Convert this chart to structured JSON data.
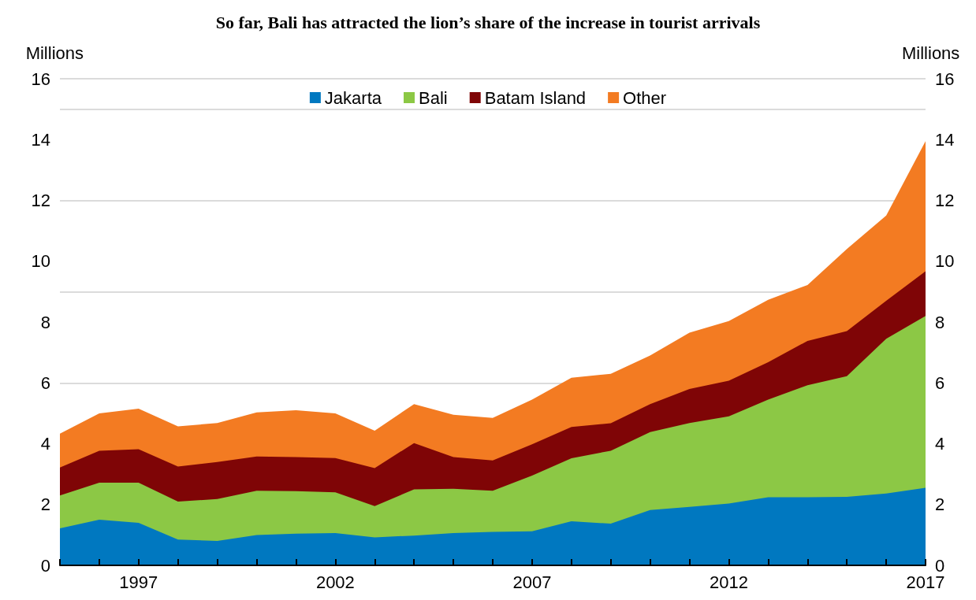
{
  "chart_data": {
    "type": "area",
    "stacked": true,
    "title": "So far, Bali has attracted the lion’s share of the increase in tourist arrivals",
    "ylabel": "Millions",
    "y2label": "Millions",
    "x": [
      1995,
      1996,
      1997,
      1998,
      1999,
      2000,
      2001,
      2002,
      2003,
      2004,
      2005,
      2006,
      2007,
      2008,
      2009,
      2010,
      2011,
      2012,
      2013,
      2014,
      2015,
      2016,
      2017
    ],
    "xlim": [
      1995,
      2017
    ],
    "xticks": [
      {
        "value": 1995,
        "label": null
      },
      {
        "value": 1996,
        "label": null
      },
      1997,
      {
        "value": 1998,
        "label": null
      },
      {
        "value": 1999,
        "label": null
      },
      {
        "value": 2000,
        "label": null
      },
      {
        "value": 2001,
        "label": null
      },
      2002,
      {
        "value": 2003,
        "label": null
      },
      {
        "value": 2004,
        "label": null
      },
      {
        "value": 2005,
        "label": null
      },
      {
        "value": 2006,
        "label": null
      },
      2007,
      {
        "value": 2008,
        "label": null
      },
      {
        "value": 2009,
        "label": null
      },
      {
        "value": 2010,
        "label": null
      },
      {
        "value": 2011,
        "label": null
      },
      2012,
      {
        "value": 2013,
        "label": null
      },
      {
        "value": 2014,
        "label": null
      },
      {
        "value": 2015,
        "label": null
      },
      {
        "value": 2016,
        "label": null
      },
      2017
    ],
    "ylim": [
      0,
      16
    ],
    "yticks": [
      0,
      2,
      4,
      6,
      8,
      10,
      12,
      14,
      16
    ],
    "y2lim": [
      0,
      16
    ],
    "y2ticks": [
      0,
      2,
      4,
      6,
      8,
      10,
      12,
      14,
      16
    ],
    "grid": "y",
    "legend": "top",
    "series": [
      {
        "name": "Jakarta",
        "color": "#0078c0",
        "values": [
          1.22,
          1.5,
          1.4,
          0.85,
          0.8,
          1.0,
          1.04,
          1.06,
          0.92,
          0.98,
          1.06,
          1.1,
          1.12,
          1.45,
          1.37,
          1.82,
          1.92,
          2.03,
          2.24,
          2.24,
          2.25,
          2.36,
          2.55
        ]
      },
      {
        "name": "Bali",
        "color": "#8cc845",
        "values": [
          1.08,
          1.22,
          1.32,
          1.25,
          1.38,
          1.45,
          1.4,
          1.34,
          1.03,
          1.52,
          1.46,
          1.35,
          1.83,
          2.07,
          2.4,
          2.56,
          2.76,
          2.87,
          3.21,
          3.68,
          3.97,
          5.09,
          5.65
        ]
      },
      {
        "name": "Batam Island",
        "color": "#7f0506",
        "values": [
          0.92,
          1.05,
          1.1,
          1.15,
          1.22,
          1.13,
          1.12,
          1.13,
          1.25,
          1.52,
          1.04,
          1.0,
          1.03,
          1.03,
          0.9,
          0.92,
          1.12,
          1.17,
          1.23,
          1.46,
          1.48,
          1.25,
          1.47
        ]
      },
      {
        "name": "Other",
        "color": "#f37b22",
        "values": [
          1.11,
          1.23,
          1.33,
          1.32,
          1.28,
          1.45,
          1.54,
          1.47,
          1.23,
          1.28,
          1.39,
          1.4,
          1.47,
          1.62,
          1.63,
          1.6,
          1.85,
          1.96,
          2.05,
          1.84,
          2.7,
          2.8,
          4.28
        ]
      }
    ]
  }
}
